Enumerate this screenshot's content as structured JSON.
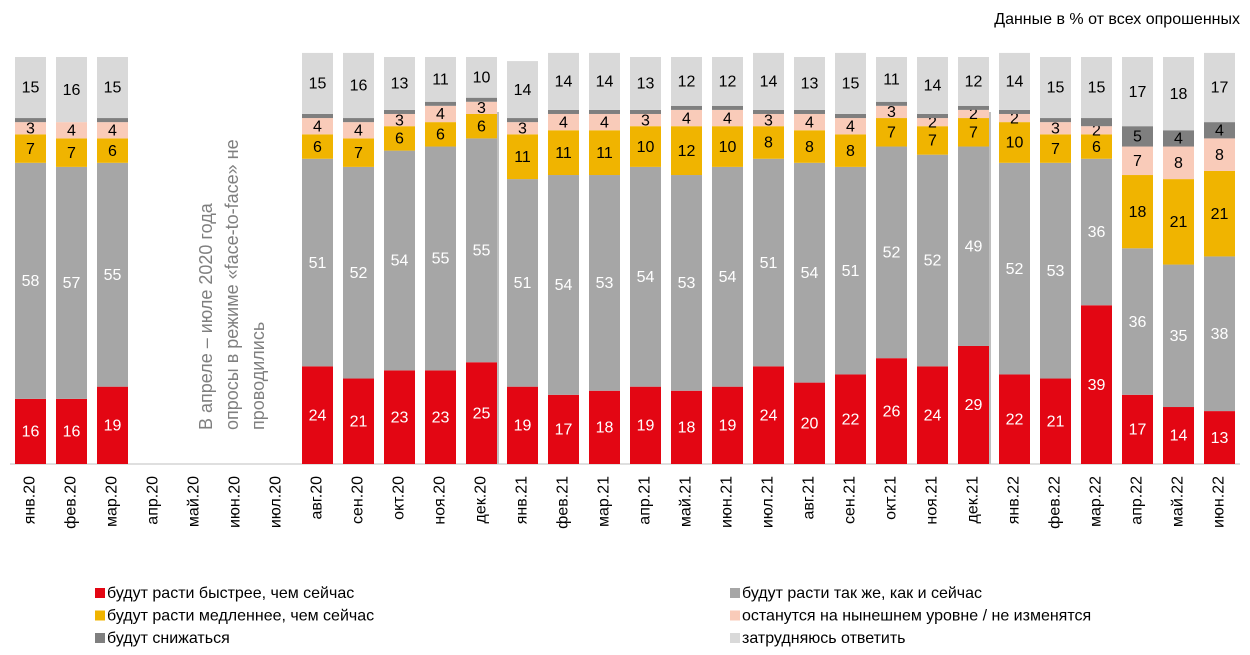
{
  "chart_data": {
    "type": "stacked_bar",
    "note": "Данные в % от всех опрошенных",
    "annotation_lines": [
      "В апреле – июле 2020 года",
      "опросы в режиме «face-to-face» не",
      "проводились"
    ],
    "categories": [
      "янв.20",
      "фев.20",
      "мар.20",
      "апр.20",
      "май.20",
      "июн.20",
      "июл.20",
      "авг.20",
      "сен.20",
      "окт.20",
      "ноя.20",
      "дек.20",
      "янв.21",
      "фев.21",
      "мар.21",
      "апр.21",
      "май.21",
      "июн.21",
      "июл.21",
      "авг.21",
      "сен.21",
      "окт.21",
      "ноя.21",
      "дек.21",
      "янв.22",
      "фев.22",
      "мар.22",
      "апр.22",
      "май.22",
      "июн.22"
    ],
    "ylim": [
      0,
      100
    ],
    "series": [
      {
        "name": "будут расти быстрее, чем сейчас",
        "color": "#e30613",
        "label_color": "#ffffff",
        "values": [
          16,
          16,
          19,
          null,
          null,
          null,
          null,
          24,
          21,
          23,
          23,
          25,
          19,
          17,
          18,
          19,
          18,
          19,
          24,
          20,
          22,
          26,
          24,
          29,
          22,
          21,
          39,
          17,
          14,
          13
        ]
      },
      {
        "name": "будут расти так же, как и сейчас",
        "color": "#a6a6a6",
        "label_color": "#ffffff",
        "values": [
          58,
          57,
          55,
          null,
          null,
          null,
          null,
          51,
          52,
          54,
          55,
          55,
          51,
          54,
          53,
          54,
          53,
          54,
          51,
          54,
          51,
          52,
          52,
          49,
          52,
          53,
          36,
          36,
          35,
          38
        ]
      },
      {
        "name": "будут расти медленнее, чем сейчас",
        "color": "#f0b400",
        "label_color": "#000000",
        "values": [
          7,
          7,
          6,
          null,
          null,
          null,
          null,
          6,
          7,
          6,
          6,
          6,
          11,
          11,
          11,
          10,
          12,
          10,
          8,
          8,
          8,
          7,
          7,
          7,
          10,
          7,
          6,
          18,
          21,
          21
        ]
      },
      {
        "name": "останутся на нынешнем уровне / не изменятся",
        "color": "#f9cbb9",
        "label_color": "#000000",
        "values": [
          3,
          4,
          4,
          null,
          null,
          null,
          null,
          4,
          4,
          3,
          4,
          3,
          3,
          4,
          4,
          3,
          4,
          4,
          3,
          4,
          4,
          3,
          2,
          2,
          2,
          3,
          2,
          7,
          8,
          8
        ]
      },
      {
        "name": "будут снижаться",
        "color": "#7f7f7f",
        "label_color": "#000000",
        "values": [
          1,
          0,
          1,
          null,
          null,
          null,
          null,
          1,
          1,
          1,
          1,
          1,
          1,
          1,
          1,
          1,
          1,
          1,
          1,
          1,
          1,
          1,
          1,
          1,
          1,
          1,
          2,
          5,
          4,
          4
        ],
        "value_labels": [
          null,
          null,
          null,
          null,
          null,
          null,
          null,
          null,
          null,
          null,
          null,
          null,
          null,
          null,
          null,
          null,
          null,
          null,
          null,
          null,
          null,
          null,
          null,
          null,
          null,
          null,
          null,
          "5",
          "4",
          "4"
        ]
      },
      {
        "name": "затрудняюсь ответить",
        "color": "#d9d9d9",
        "label_color": "#000000",
        "values": [
          15,
          16,
          15,
          null,
          null,
          null,
          null,
          15,
          16,
          13,
          11,
          10,
          14,
          14,
          14,
          13,
          12,
          12,
          14,
          13,
          15,
          11,
          14,
          12,
          14,
          15,
          15,
          17,
          18,
          17
        ]
      }
    ]
  }
}
